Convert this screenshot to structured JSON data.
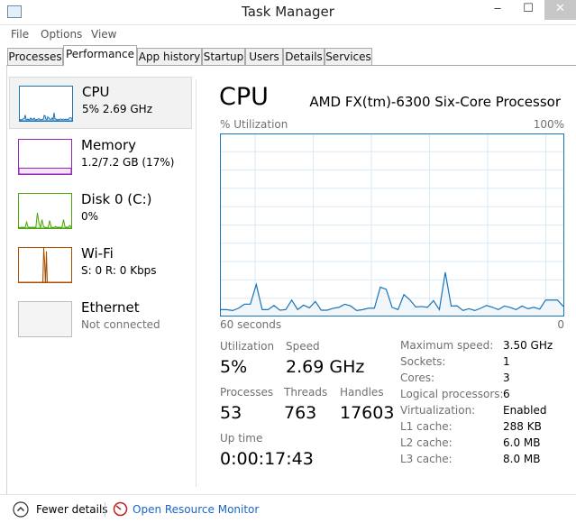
{
  "window": {
    "title": "Task Manager",
    "minimize": "‒",
    "maximize": "☐",
    "close": "✕"
  },
  "menu": [
    "File",
    "Options",
    "View"
  ],
  "tabs": [
    {
      "label": "Processes"
    },
    {
      "label": "Performance",
      "active": true
    },
    {
      "label": "App history"
    },
    {
      "label": "Startup"
    },
    {
      "label": "Users"
    },
    {
      "label": "Details"
    },
    {
      "label": "Services"
    }
  ],
  "sidebar": [
    {
      "name": "CPU",
      "sub": "5%  2.69 GHz",
      "color": "#1a74b7",
      "fill": "#dbe9f6"
    },
    {
      "name": "Memory",
      "sub": "1.2/7.2 GB (17%)",
      "color": "#9528b4",
      "fill": "#f2e3f7"
    },
    {
      "name": "Disk 0 (C:)",
      "sub": "0%",
      "color": "#4da60c",
      "fill": "#e6f4d9"
    },
    {
      "name": "Wi-Fi",
      "sub": "S: 0 R: 0 Kbps",
      "color": "#a74f01",
      "fill": "#f4e3d3"
    },
    {
      "name": "Ethernet",
      "sub": "Not connected",
      "color": "#bdbdbd",
      "fill": "#f4f4f4"
    }
  ],
  "thumb_data": {
    "memory": [
      17,
      17
    ],
    "disk": [
      2,
      2,
      3,
      2,
      2,
      18,
      2,
      3,
      2,
      3,
      2,
      3,
      45,
      15,
      2,
      25,
      5,
      2,
      2,
      2,
      22,
      3,
      2,
      2,
      5,
      2,
      3,
      2,
      3,
      25,
      2,
      3,
      2,
      8,
      3
    ],
    "wifi": [
      0,
      0,
      0,
      0,
      0,
      0,
      0,
      0,
      0,
      0,
      0,
      0,
      0,
      0,
      0,
      0,
      0,
      0,
      0,
      0,
      0,
      0,
      0,
      0,
      0,
      0,
      0,
      0,
      100,
      60,
      0,
      90,
      0,
      0,
      0,
      0,
      0,
      0,
      0,
      0,
      0,
      0,
      0,
      0,
      0,
      0,
      0,
      0,
      0,
      0,
      0,
      0,
      0,
      0,
      0,
      0,
      0,
      0,
      0,
      0
    ]
  },
  "main": {
    "title": "CPU",
    "processor": "AMD FX(tm)-6300 Six-Core Processor",
    "util_label": "% Utilization",
    "max_label": "100%",
    "time_label": "60 seconds",
    "zero_label": "0",
    "stats": {
      "utilization_label": "Utilization",
      "utilization": "5%",
      "speed_label": "Speed",
      "speed": "2.69 GHz",
      "processes_label": "Processes",
      "processes": "53",
      "threads_label": "Threads",
      "threads": "763",
      "handles_label": "Handles",
      "handles": "17603",
      "uptime_label": "Up time",
      "uptime": "0:00:17:43"
    },
    "specs": [
      [
        "Maximum speed:",
        "3.50 GHz"
      ],
      [
        "Sockets:",
        "1"
      ],
      [
        "Cores:",
        "3"
      ],
      [
        "Logical processors:",
        "6"
      ],
      [
        "Virtualization:",
        "Enabled"
      ],
      [
        "L1 cache:",
        "288 KB"
      ],
      [
        "L2 cache:",
        "6.0 MB"
      ],
      [
        "L3 cache:",
        "8.0 MB"
      ]
    ]
  },
  "chart_data": {
    "type": "area",
    "xlabel": "60 seconds",
    "ylabel": "% Utilization",
    "xlim": [
      60,
      0
    ],
    "ylim": [
      0,
      100
    ],
    "grid": true,
    "color": "#1a74b7",
    "values": [
      3.3,
      3.3,
      2.8,
      4.1,
      6.3,
      6.3,
      17.2,
      3.3,
      3.3,
      5.6,
      3.0,
      3.3,
      8.6,
      3.3,
      5.8,
      4.3,
      7.8,
      3.0,
      3.0,
      4.0,
      4.6,
      6.3,
      5.3,
      2.8,
      3.3,
      4.1,
      4.1,
      15.7,
      14.5,
      4.6,
      3.3,
      11.6,
      8.7,
      4.8,
      5.0,
      4.6,
      8.3,
      3.3,
      23.9,
      5.3,
      5.4,
      2.8,
      3.8,
      2.8,
      4.1,
      5.6,
      4.6,
      3.3,
      5.3,
      4.5,
      3.3,
      5.3,
      3.8,
      4.6,
      3.6,
      8.6,
      8.6,
      8.6,
      5.0
    ]
  },
  "footer": {
    "fewer": "Fewer details",
    "monitor": "Open Resource Monitor"
  }
}
